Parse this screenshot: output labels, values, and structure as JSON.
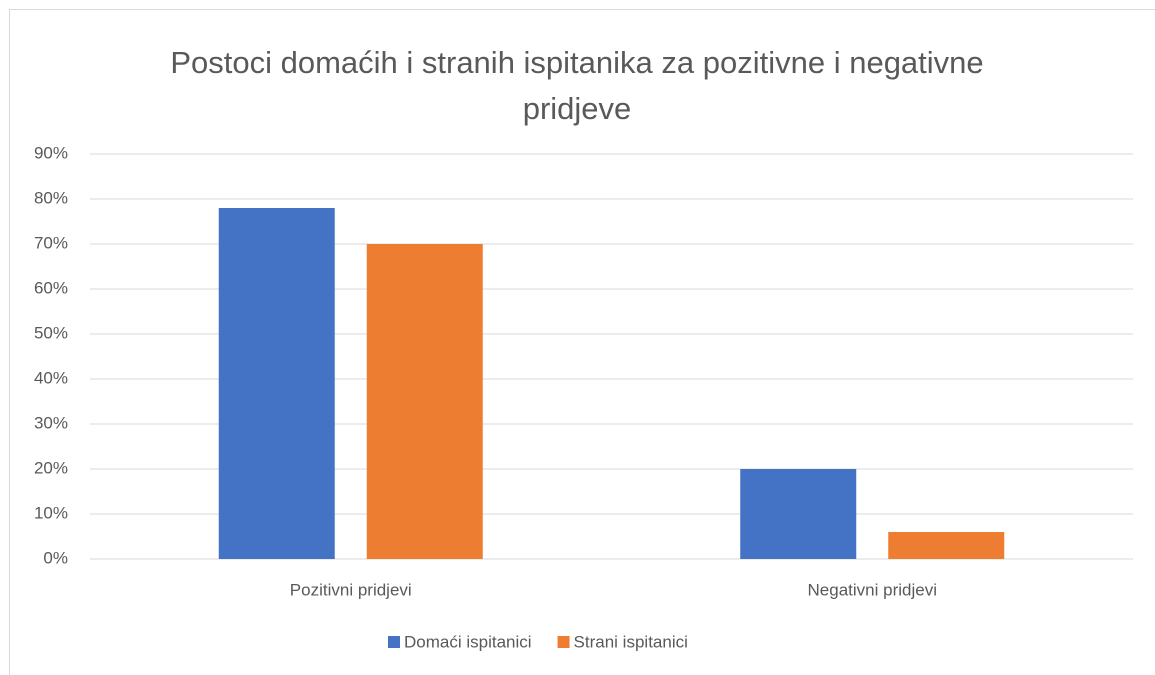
{
  "chart_data": {
    "type": "bar",
    "title": "Postoci domaćih i stranih ispitanika za pozitivne i negativne pridjeve",
    "categories": [
      "Pozitivni pridjevi",
      "Negativni pridjevi"
    ],
    "series": [
      {
        "name": "Domaći ispitanici",
        "color": "#4472c4",
        "values": [
          78,
          20
        ]
      },
      {
        "name": "Strani ispitanici",
        "color": "#ed7d31",
        "values": [
          70,
          6
        ]
      }
    ],
    "ylim": [
      0,
      90
    ],
    "yticks": [
      {
        "value": 0,
        "label": "0%"
      },
      {
        "value": 10,
        "label": "10%"
      },
      {
        "value": 20,
        "label": "20%"
      },
      {
        "value": 30,
        "label": "30%"
      },
      {
        "value": 40,
        "label": "40%"
      },
      {
        "value": 50,
        "label": "50%"
      },
      {
        "value": 60,
        "label": "60%"
      },
      {
        "value": 70,
        "label": "70%"
      },
      {
        "value": 80,
        "label": "80%"
      },
      {
        "value": 90,
        "label": "90%"
      }
    ],
    "grid": true,
    "legend": "bottom"
  }
}
